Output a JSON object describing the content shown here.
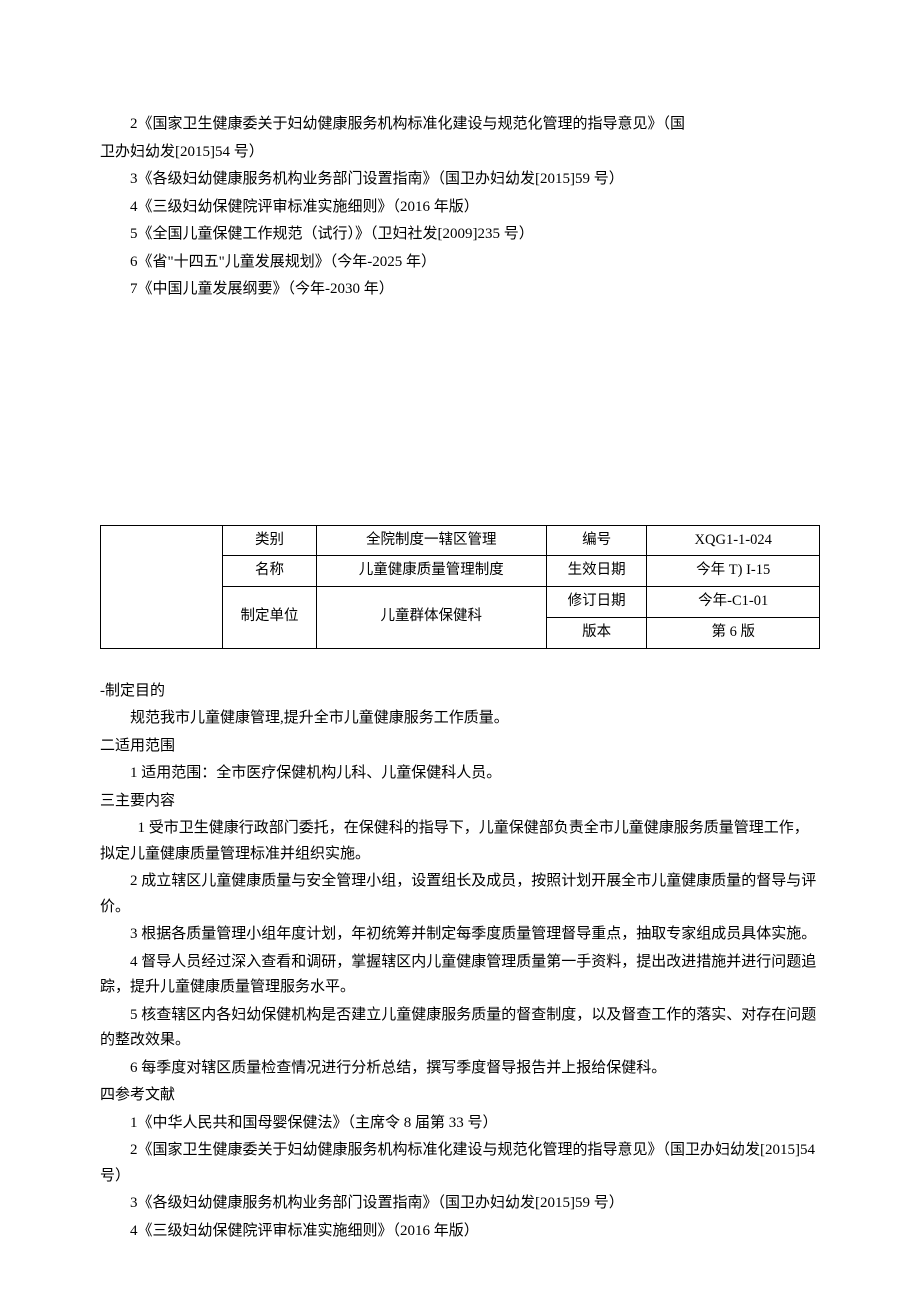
{
  "top_refs": {
    "r2_line1": "2《国家卫生健康委关于妇幼健康服务机构标准化建设与规范化管理的指导意见》（国",
    "r2_line2": "卫办妇幼发[2015]54 号）",
    "r3": "3《各级妇幼健康服务机构业务部门设置指南》（国卫办妇幼发[2015]59 号）",
    "r4": "4《三级妇幼保健院评审标准实施细则》（2016 年版）",
    "r5": "5《全国儿童保健工作规范（试行）》（卫妇社发[2009]235 号）",
    "r6": "6《省\"十四五\"儿童发展规划》（今年-2025 年）",
    "r7": "7《中国儿童发展纲要》（今年-2030 年）"
  },
  "table": {
    "row1": {
      "a": "类别",
      "b": "全院制度一辖区管理",
      "c": "编号",
      "d": "XQG1-1-024"
    },
    "row2": {
      "a": "名称",
      "b": "儿童健康质量管理制度",
      "c": "生效日期",
      "d": "今年 T) I-15"
    },
    "row3": {
      "a": "制定单位",
      "b": "儿童群体保健科",
      "c": "修订日期",
      "d": "今年-C1-01"
    },
    "row4": {
      "c": "版本",
      "d": "第 6 版"
    }
  },
  "body": {
    "s1_title": "-制定目的",
    "s1_p1": "规范我市儿童健康管理,提升全市儿童健康服务工作质量。",
    "s2_title": "二适用范围",
    "s2_p1": "1 适用范围：全市医疗保健机构儿科、儿童保健科人员。",
    "s3_title": "三主要内容",
    "s3_p1": "1 受市卫生健康行政部门委托，在保健科的指导下，儿童保健部负责全市儿童健康服务质量管理工作，拟定儿童健康质量管理标准并组织实施。",
    "s3_p2": "2 成立辖区儿童健康质量与安全管理小组，设置组长及成员，按照计划开展全市儿童健康质量的督导与评价。",
    "s3_p3": "3 根据各质量管理小组年度计划，年初统筹并制定每季度质量管理督导重点，抽取专家组成员具体实施。",
    "s3_p4": "4 督导人员经过深入查看和调研，掌握辖区内儿童健康管理质量第一手资料，提出改进措施并进行问题追踪，提升儿童健康质量管理服务水平。",
    "s3_p5": "5 核查辖区内各妇幼保健机构是否建立儿童健康服务质量的督查制度，以及督查工作的落实、对存在问题的整改效果。",
    "s3_p6": "6 每季度对辖区质量检查情况进行分析总结，撰写季度督导报告并上报给保健科。",
    "s4_title": "四参考文献",
    "s4_p1": "1《中华人民共和国母婴保健法》（主席令 8 届第 33 号）",
    "s4_p2": "2《国家卫生健康委关于妇幼健康服务机构标准化建设与规范化管理的指导意见》（国卫办妇幼发[2015]54 号）",
    "s4_p3": "3《各级妇幼健康服务机构业务部门设置指南》（国卫办妇幼发[2015]59 号）",
    "s4_p4": "4《三级妇幼保健院评审标准实施细则》（2016 年版）"
  }
}
